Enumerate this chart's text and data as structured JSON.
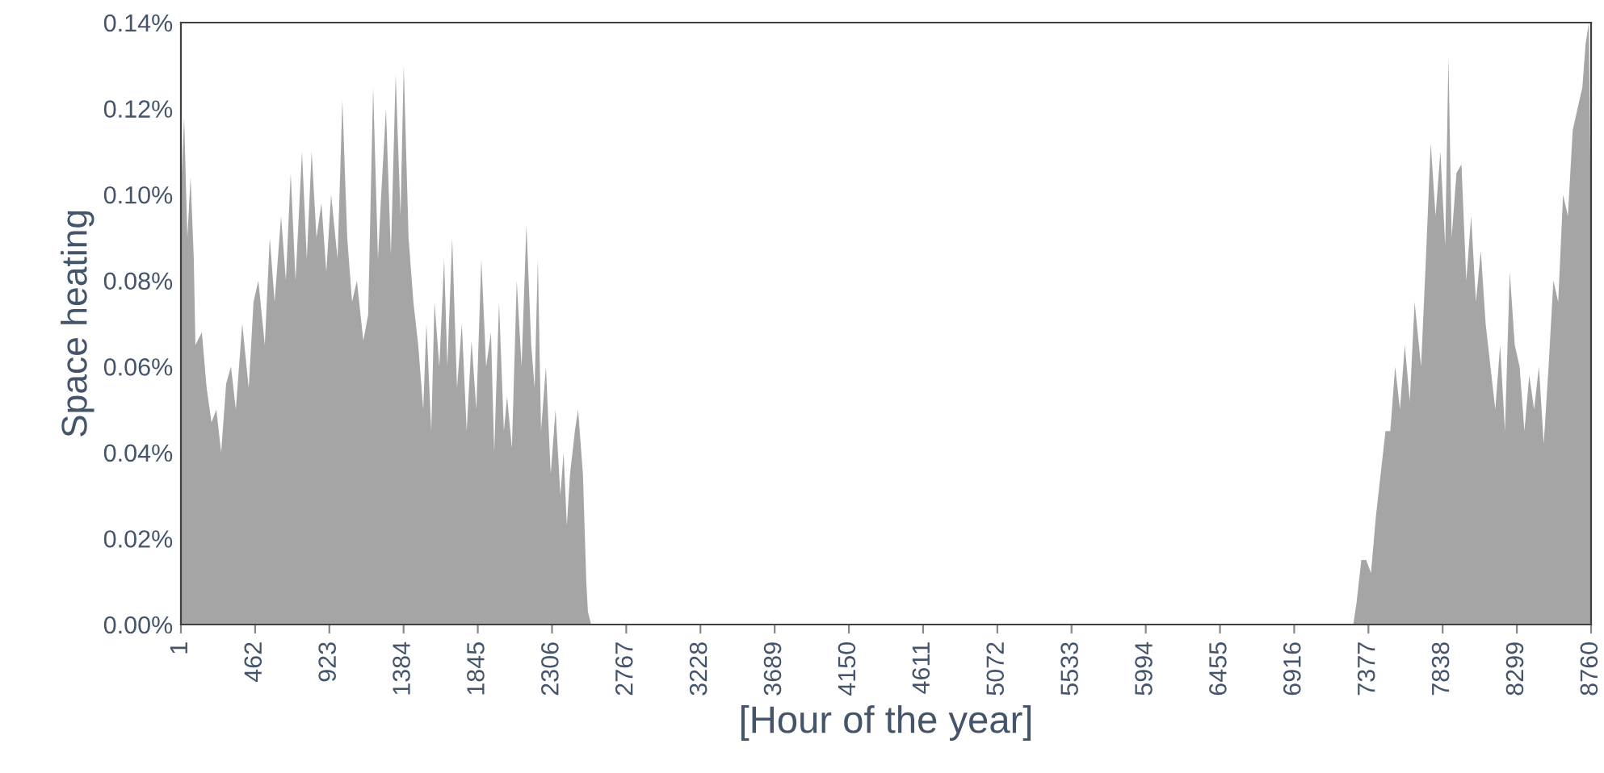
{
  "chart_data": {
    "type": "area",
    "xlabel": "[Hour of the year]",
    "ylabel": "Space heating",
    "xlim": [
      1,
      8760
    ],
    "ylim": [
      0,
      0.14
    ],
    "xticks": [
      1,
      462,
      923,
      1384,
      1845,
      2306,
      2767,
      3228,
      3689,
      4150,
      4611,
      5072,
      5533,
      5994,
      6455,
      6916,
      7377,
      7838,
      8299,
      8760
    ],
    "yticks": [
      {
        "value": 0,
        "label": "0.00%"
      },
      {
        "value": 0.02,
        "label": "0.02%"
      },
      {
        "value": 0.04,
        "label": "0.04%"
      },
      {
        "value": 0.06,
        "label": "0.06%"
      },
      {
        "value": 0.08,
        "label": "0.08%"
      },
      {
        "value": 0.1,
        "label": "0.10%"
      },
      {
        "value": 0.12,
        "label": "0.12%"
      },
      {
        "value": 0.14,
        "label": "0.14%"
      }
    ],
    "grid": false,
    "legend": false,
    "series": [
      {
        "color": "#a5a5a5",
        "x": [
          1,
          21,
          41,
          61,
          81,
          91,
          131,
          161,
          191,
          221,
          251,
          282,
          312,
          342,
          382,
          422,
          452,
          482,
          522,
          553,
          583,
          623,
          653,
          683,
          713,
          753,
          783,
          813,
          843,
          874,
          904,
          934,
          974,
          1004,
          1034,
          1064,
          1094,
          1134,
          1164,
          1195,
          1225,
          1245,
          1275,
          1305,
          1335,
          1365,
          1385,
          1415,
          1445,
          1475,
          1506,
          1526,
          1556,
          1576,
          1606,
          1636,
          1656,
          1686,
          1716,
          1746,
          1776,
          1806,
          1836,
          1867,
          1897,
          1927,
          1947,
          1977,
          2007,
          2027,
          2057,
          2087,
          2117,
          2147,
          2177,
          2198,
          2218,
          2238,
          2268,
          2298,
          2328,
          2358,
          2378,
          2398,
          2418,
          2448,
          2468,
          2498,
          2519,
          2529,
          2549,
          7283,
          7303,
          7333,
          7363,
          7393,
          7423,
          7453,
          7483,
          7513,
          7543,
          7573,
          7603,
          7634,
          7664,
          7704,
          7734,
          7764,
          7794,
          7824,
          7854,
          7874,
          7894,
          7924,
          7955,
          7985,
          8015,
          8045,
          8075,
          8105,
          8135,
          8165,
          8195,
          8225,
          8255,
          8286,
          8316,
          8346,
          8376,
          8406,
          8436,
          8466,
          8496,
          8526,
          8556,
          8586,
          8616,
          8646,
          8676,
          8706,
          8726,
          8746,
          8760
        ],
        "values": [
          0.1,
          0.118,
          0.09,
          0.104,
          0.085,
          0.065,
          0.068,
          0.055,
          0.047,
          0.05,
          0.04,
          0.056,
          0.06,
          0.05,
          0.07,
          0.055,
          0.075,
          0.08,
          0.065,
          0.09,
          0.075,
          0.095,
          0.08,
          0.105,
          0.08,
          0.11,
          0.085,
          0.11,
          0.09,
          0.098,
          0.082,
          0.1,
          0.085,
          0.122,
          0.09,
          0.075,
          0.08,
          0.066,
          0.072,
          0.125,
          0.085,
          0.1,
          0.12,
          0.086,
          0.128,
          0.095,
          0.13,
          0.09,
          0.075,
          0.065,
          0.05,
          0.07,
          0.045,
          0.075,
          0.06,
          0.085,
          0.06,
          0.09,
          0.055,
          0.07,
          0.045,
          0.066,
          0.05,
          0.085,
          0.06,
          0.068,
          0.04,
          0.075,
          0.045,
          0.053,
          0.041,
          0.08,
          0.06,
          0.093,
          0.065,
          0.055,
          0.085,
          0.045,
          0.06,
          0.035,
          0.05,
          0.03,
          0.04,
          0.023,
          0.035,
          0.045,
          0.05,
          0.035,
          0.01,
          0.003,
          0,
          0,
          0.005,
          0.015,
          0.015,
          0.012,
          0.025,
          0.035,
          0.045,
          0.045,
          0.06,
          0.05,
          0.065,
          0.052,
          0.075,
          0.06,
          0.085,
          0.112,
          0.095,
          0.11,
          0.088,
          0.132,
          0.09,
          0.105,
          0.107,
          0.08,
          0.095,
          0.075,
          0.087,
          0.07,
          0.06,
          0.05,
          0.065,
          0.045,
          0.082,
          0.065,
          0.06,
          0.045,
          0.058,
          0.05,
          0.06,
          0.042,
          0.06,
          0.08,
          0.075,
          0.1,
          0.095,
          0.115,
          0.12,
          0.125,
          0.135,
          0.14,
          0.09
        ]
      }
    ]
  }
}
